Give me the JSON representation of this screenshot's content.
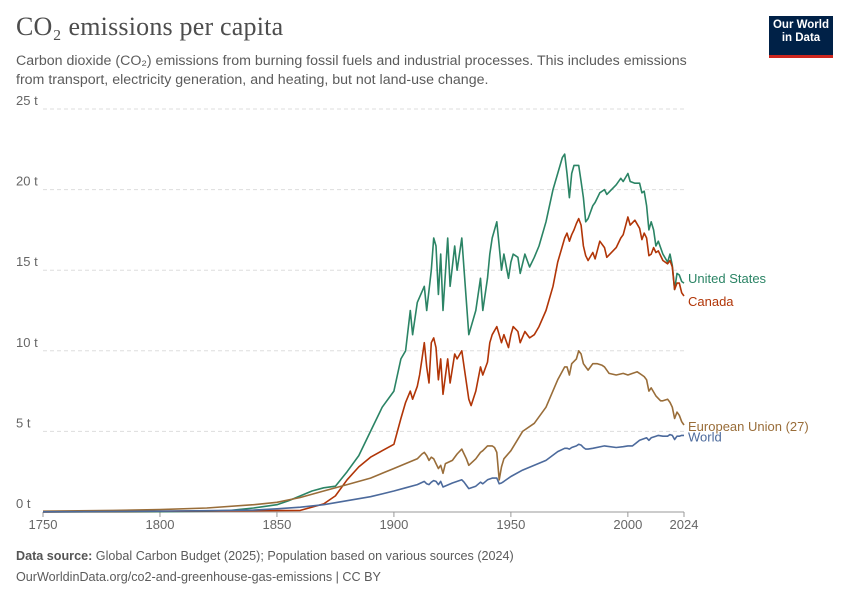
{
  "header": {
    "title": "CO₂ emissions per capita",
    "subtitle": "Carbon dioxide (CO₂) emissions from burning fossil fuels and industrial processes. This includes emissions from transport, electricity generation, and heating, but not land-use change.",
    "logo_line1": "Our World",
    "logo_line2": "in Data"
  },
  "footer": {
    "source_label": "Data source:",
    "source_text": "Global Carbon Budget (2025); Population based on various sources (2024)",
    "link_text": "OurWorldinData.org/co2-and-greenhouse-gas-emissions | CC BY"
  },
  "colors": {
    "United States": "#2b8465",
    "Canada": "#b13507",
    "European Union (27)": "#996d39",
    "World": "#4c6a9c",
    "grid": "#dddddd",
    "axis": "#999999"
  },
  "chart_data": {
    "type": "line",
    "title": "CO₂ emissions per capita",
    "xlabel": "",
    "ylabel": "",
    "xlim": [
      1750,
      2024
    ],
    "ylim": [
      0,
      25
    ],
    "x_ticks": [
      {
        "value": 1750,
        "label": "1750"
      },
      {
        "value": 1800,
        "label": "1800"
      },
      {
        "value": 1850,
        "label": "1850"
      },
      {
        "value": 1900,
        "label": "1900"
      },
      {
        "value": 1950,
        "label": "1950"
      },
      {
        "value": 2000,
        "label": "2000"
      },
      {
        "value": 2024,
        "label": "2024"
      }
    ],
    "y_ticks": [
      {
        "value": 0,
        "label": "0 t"
      },
      {
        "value": 5,
        "label": "5 t"
      },
      {
        "value": 10,
        "label": "10 t"
      },
      {
        "value": 15,
        "label": "15 t"
      },
      {
        "value": 20,
        "label": "20 t"
      },
      {
        "value": 25,
        "label": "25 t"
      }
    ],
    "grid": true,
    "legend": "line-end labels on right",
    "series": [
      {
        "name": "United States",
        "x": [
          1750,
          1800,
          1820,
          1830,
          1840,
          1850,
          1855,
          1860,
          1865,
          1870,
          1875,
          1880,
          1885,
          1890,
          1895,
          1900,
          1903,
          1905,
          1907,
          1908,
          1910,
          1913,
          1914,
          1916,
          1917,
          1918,
          1919,
          1920,
          1921,
          1923,
          1924,
          1926,
          1927,
          1929,
          1930,
          1932,
          1935,
          1937,
          1938,
          1940,
          1941,
          1942,
          1944,
          1945,
          1946,
          1947,
          1949,
          1950,
          1951,
          1953,
          1954,
          1956,
          1958,
          1960,
          1962,
          1965,
          1968,
          1970,
          1972,
          1973,
          1974,
          1975,
          1976,
          1977,
          1978,
          1979,
          1980,
          1981,
          1982,
          1983,
          1985,
          1986,
          1988,
          1990,
          1991,
          1995,
          1997,
          1998,
          2000,
          2001,
          2003,
          2005,
          2006,
          2007,
          2008,
          2009,
          2010,
          2011,
          2012,
          2013,
          2015,
          2017,
          2018,
          2019,
          2020,
          2021,
          2022,
          2023,
          2024
        ],
        "y": [
          0,
          0.02,
          0.05,
          0.1,
          0.25,
          0.45,
          0.7,
          1.0,
          1.3,
          1.5,
          1.6,
          2.5,
          3.5,
          5.0,
          6.5,
          7.5,
          9.5,
          10.0,
          12.5,
          11.0,
          13.0,
          14.0,
          12.5,
          15.0,
          17.0,
          16.5,
          13.5,
          16.0,
          12.5,
          17.0,
          14.0,
          16.5,
          15.0,
          17.0,
          15.0,
          11.0,
          12.5,
          14.5,
          12.5,
          14.5,
          16.0,
          17.0,
          18.0,
          16.5,
          15.0,
          16.0,
          14.5,
          15.5,
          16.0,
          15.8,
          14.8,
          16.0,
          15.2,
          15.8,
          16.5,
          18.0,
          20.0,
          21.0,
          22.0,
          22.2,
          21.0,
          19.5,
          21.0,
          21.5,
          21.5,
          21.5,
          20.5,
          19.5,
          18.0,
          18.2,
          19.0,
          19.2,
          19.8,
          20.0,
          19.7,
          20.3,
          20.7,
          20.5,
          21.0,
          20.5,
          20.4,
          20.4,
          19.8,
          19.9,
          19.0,
          17.5,
          18.0,
          17.5,
          16.5,
          16.8,
          16.0,
          15.5,
          16.0,
          15.3,
          13.8,
          14.8,
          14.7,
          14.3,
          14.2
        ]
      },
      {
        "name": "Canada",
        "x": [
          1750,
          1860,
          1870,
          1875,
          1880,
          1885,
          1890,
          1895,
          1900,
          1903,
          1905,
          1907,
          1908,
          1910,
          1911,
          1912,
          1913,
          1914,
          1915,
          1916,
          1917,
          1918,
          1919,
          1920,
          1921,
          1923,
          1924,
          1926,
          1927,
          1929,
          1930,
          1932,
          1933,
          1935,
          1937,
          1938,
          1940,
          1941,
          1942,
          1944,
          1945,
          1946,
          1947,
          1949,
          1950,
          1951,
          1953,
          1954,
          1956,
          1958,
          1960,
          1962,
          1965,
          1968,
          1970,
          1972,
          1973,
          1974,
          1975,
          1976,
          1977,
          1978,
          1979,
          1980,
          1981,
          1982,
          1983,
          1985,
          1986,
          1988,
          1990,
          1991,
          1995,
          1997,
          1998,
          2000,
          2001,
          2003,
          2005,
          2006,
          2007,
          2008,
          2009,
          2010,
          2011,
          2012,
          2013,
          2015,
          2017,
          2018,
          2019,
          2020,
          2021,
          2022,
          2023,
          2024
        ],
        "y": [
          0,
          0.1,
          0.5,
          1.0,
          2.0,
          2.8,
          3.4,
          3.8,
          4.2,
          5.8,
          6.8,
          7.5,
          7.0,
          7.8,
          8.5,
          9.5,
          10.5,
          9.0,
          8.0,
          10.5,
          10.8,
          10.2,
          8.2,
          9.5,
          7.3,
          9.5,
          8.0,
          9.8,
          9.5,
          10.0,
          9.0,
          7.0,
          6.6,
          7.5,
          9.0,
          8.5,
          9.3,
          10.5,
          11.0,
          11.5,
          11.0,
          10.5,
          11.0,
          10.2,
          11.0,
          11.5,
          11.2,
          10.5,
          11.2,
          10.8,
          11.0,
          11.5,
          12.5,
          14.0,
          15.5,
          16.5,
          17.0,
          17.3,
          16.8,
          17.2,
          17.5,
          17.9,
          18.2,
          17.8,
          16.5,
          15.9,
          15.6,
          16.1,
          15.7,
          16.8,
          16.4,
          15.8,
          16.4,
          17.0,
          17.2,
          18.3,
          17.8,
          18.1,
          17.6,
          16.9,
          17.3,
          17.0,
          15.9,
          16.0,
          16.4,
          16.1,
          16.2,
          15.6,
          15.4,
          15.6,
          15.2,
          13.8,
          14.2,
          14.2,
          13.6,
          13.4
        ]
      },
      {
        "name": "European Union (27)",
        "x": [
          1750,
          1780,
          1800,
          1820,
          1840,
          1850,
          1860,
          1870,
          1880,
          1890,
          1900,
          1905,
          1910,
          1912,
          1913,
          1914,
          1915,
          1916,
          1917,
          1918,
          1919,
          1920,
          1921,
          1922,
          1925,
          1927,
          1929,
          1930,
          1931,
          1932,
          1935,
          1937,
          1938,
          1940,
          1942,
          1943,
          1944,
          1945,
          1946,
          1947,
          1950,
          1955,
          1960,
          1965,
          1970,
          1973,
          1974,
          1975,
          1976,
          1978,
          1979,
          1980,
          1981,
          1982,
          1983,
          1985,
          1987,
          1989,
          1990,
          1992,
          1995,
          1998,
          2000,
          2002,
          2004,
          2006,
          2007,
          2008,
          2009,
          2010,
          2012,
          2014,
          2015,
          2017,
          2018,
          2019,
          2020,
          2021,
          2022,
          2023,
          2024
        ],
        "y": [
          0.05,
          0.1,
          0.15,
          0.25,
          0.45,
          0.6,
          0.9,
          1.3,
          1.7,
          2.1,
          2.7,
          3.0,
          3.3,
          3.6,
          3.7,
          3.5,
          3.2,
          3.4,
          3.3,
          3.0,
          2.7,
          2.9,
          2.4,
          3.0,
          3.2,
          3.6,
          3.9,
          3.6,
          3.3,
          2.9,
          3.3,
          3.7,
          3.8,
          4.1,
          4.1,
          4.0,
          3.7,
          2.0,
          2.8,
          3.3,
          3.8,
          5.0,
          5.5,
          6.5,
          8.2,
          9.0,
          9.0,
          8.5,
          9.2,
          9.5,
          10.0,
          9.8,
          9.2,
          9.0,
          8.8,
          9.2,
          9.2,
          9.1,
          9.0,
          8.6,
          8.5,
          8.6,
          8.5,
          8.6,
          8.7,
          8.5,
          8.4,
          8.2,
          7.5,
          7.7,
          7.2,
          6.9,
          6.9,
          7.0,
          6.8,
          6.5,
          5.8,
          6.2,
          6.0,
          5.6,
          5.4
        ]
      },
      {
        "name": "World",
        "x": [
          1750,
          1800,
          1820,
          1840,
          1850,
          1860,
          1870,
          1880,
          1890,
          1900,
          1905,
          1910,
          1913,
          1914,
          1915,
          1916,
          1917,
          1918,
          1919,
          1920,
          1921,
          1925,
          1929,
          1930,
          1931,
          1932,
          1935,
          1937,
          1938,
          1940,
          1942,
          1944,
          1945,
          1946,
          1947,
          1950,
          1955,
          1960,
          1965,
          1970,
          1973,
          1974,
          1975,
          1976,
          1978,
          1979,
          1980,
          1981,
          1982,
          1983,
          1985,
          1990,
          1995,
          1998,
          2000,
          2002,
          2005,
          2008,
          2009,
          2010,
          2012,
          2013,
          2015,
          2017,
          2018,
          2019,
          2020,
          2021,
          2022,
          2023,
          2024
        ],
        "y": [
          0.01,
          0.05,
          0.08,
          0.12,
          0.2,
          0.3,
          0.45,
          0.7,
          0.95,
          1.3,
          1.5,
          1.7,
          1.9,
          1.75,
          1.7,
          1.85,
          1.95,
          1.9,
          1.7,
          1.9,
          1.55,
          1.8,
          2.0,
          1.85,
          1.65,
          1.45,
          1.6,
          1.85,
          1.75,
          2.0,
          2.1,
          2.1,
          1.75,
          1.8,
          1.9,
          2.2,
          2.6,
          2.9,
          3.2,
          3.75,
          3.95,
          3.95,
          3.9,
          4.0,
          4.1,
          4.2,
          4.15,
          4.0,
          3.9,
          3.9,
          3.95,
          4.1,
          4.0,
          4.05,
          4.1,
          4.1,
          4.45,
          4.6,
          4.45,
          4.6,
          4.7,
          4.75,
          4.7,
          4.7,
          4.8,
          4.75,
          4.5,
          4.7,
          4.7,
          4.75,
          4.75
        ]
      }
    ],
    "end_labels": [
      {
        "series": "United States",
        "label": "United States"
      },
      {
        "series": "Canada",
        "label": "Canada"
      },
      {
        "series": "European Union (27)",
        "label": "European Union (27)"
      },
      {
        "series": "World",
        "label": "World"
      }
    ]
  }
}
